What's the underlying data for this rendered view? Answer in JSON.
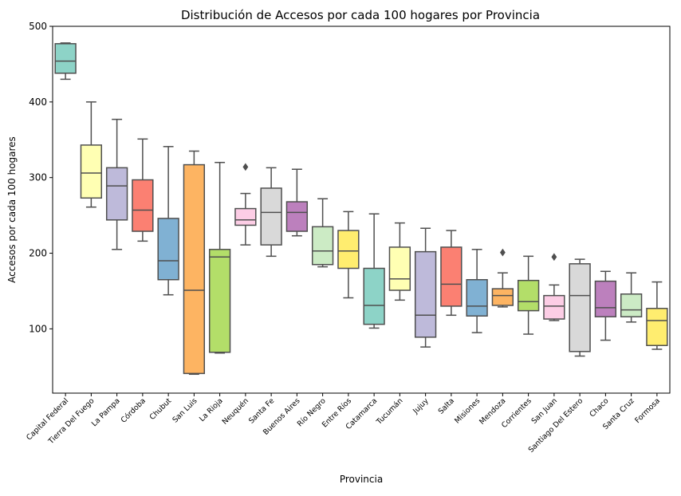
{
  "chart_data": {
    "type": "boxplot",
    "title": "Distribución de Accesos por cada 100 hogares por Provincia",
    "xlabel": "Provincia",
    "ylabel": "Accesos por cada 100 hogares",
    "ylim": [
      15,
      500
    ],
    "yticks": [
      100,
      200,
      300,
      400,
      500
    ],
    "grid": false,
    "legend": "none",
    "categories": [
      {
        "name": "Capital Federal",
        "color": "#8dd3c7",
        "whisker_low": 430,
        "q1": 438,
        "median": 454,
        "q3": 477,
        "whisker_high": 478,
        "outliers": []
      },
      {
        "name": "Tierra Del Fuego",
        "color": "#ffffb3",
        "whisker_low": 261,
        "q1": 273,
        "median": 306,
        "q3": 343,
        "whisker_high": 400,
        "outliers": []
      },
      {
        "name": "La Pampa",
        "color": "#bebada",
        "whisker_low": 205,
        "q1": 244,
        "median": 289,
        "q3": 313,
        "whisker_high": 377,
        "outliers": []
      },
      {
        "name": "Córdoba",
        "color": "#fb8072",
        "whisker_low": 216,
        "q1": 229,
        "median": 257,
        "q3": 297,
        "whisker_high": 351,
        "outliers": []
      },
      {
        "name": "Chubut",
        "color": "#80b1d3",
        "whisker_low": 145,
        "q1": 165,
        "median": 190,
        "q3": 246,
        "whisker_high": 341,
        "outliers": []
      },
      {
        "name": "San Luis",
        "color": "#fdb462",
        "whisker_low": 40,
        "q1": 41,
        "median": 151,
        "q3": 317,
        "whisker_high": 335,
        "outliers": []
      },
      {
        "name": "La Rioja",
        "color": "#b3de69",
        "whisker_low": 68,
        "q1": 69,
        "median": 195,
        "q3": 205,
        "whisker_high": 320,
        "outliers": []
      },
      {
        "name": "Neuquén",
        "color": "#fccde5",
        "whisker_low": 211,
        "q1": 237,
        "median": 244,
        "q3": 259,
        "whisker_high": 279,
        "outliers": [
          314
        ]
      },
      {
        "name": "Santa Fe",
        "color": "#d9d9d9",
        "whisker_low": 196,
        "q1": 211,
        "median": 254,
        "q3": 286,
        "whisker_high": 313,
        "outliers": []
      },
      {
        "name": "Buenos Aires",
        "color": "#bc80bd",
        "whisker_low": 223,
        "q1": 229,
        "median": 254,
        "q3": 268,
        "whisker_high": 311,
        "outliers": []
      },
      {
        "name": "Río Negro",
        "color": "#ccebc5",
        "whisker_low": 182,
        "q1": 185,
        "median": 203,
        "q3": 235,
        "whisker_high": 272,
        "outliers": []
      },
      {
        "name": "Entre Ríos",
        "color": "#ffed6f",
        "whisker_low": 141,
        "q1": 180,
        "median": 203,
        "q3": 230,
        "whisker_high": 255,
        "outliers": []
      },
      {
        "name": "Catamarca",
        "color": "#8dd3c7",
        "whisker_low": 101,
        "q1": 106,
        "median": 131,
        "q3": 180,
        "whisker_high": 252,
        "outliers": []
      },
      {
        "name": "Tucumán",
        "color": "#ffffb3",
        "whisker_low": 138,
        "q1": 151,
        "median": 166,
        "q3": 208,
        "whisker_high": 240,
        "outliers": []
      },
      {
        "name": "Jujuy",
        "color": "#bebada",
        "whisker_low": 76,
        "q1": 89,
        "median": 118,
        "q3": 202,
        "whisker_high": 233,
        "outliers": []
      },
      {
        "name": "Salta",
        "color": "#fb8072",
        "whisker_low": 118,
        "q1": 130,
        "median": 159,
        "q3": 208,
        "whisker_high": 230,
        "outliers": []
      },
      {
        "name": "Misiones",
        "color": "#80b1d3",
        "whisker_low": 95,
        "q1": 117,
        "median": 130,
        "q3": 165,
        "whisker_high": 205,
        "outliers": []
      },
      {
        "name": "Mendoza",
        "color": "#fdb462",
        "whisker_low": 129,
        "q1": 131,
        "median": 144,
        "q3": 153,
        "whisker_high": 174,
        "outliers": [
          201
        ]
      },
      {
        "name": "Corrientes",
        "color": "#b3de69",
        "whisker_low": 93,
        "q1": 124,
        "median": 136,
        "q3": 164,
        "whisker_high": 196,
        "outliers": []
      },
      {
        "name": "San Juan",
        "color": "#fccde5",
        "whisker_low": 111,
        "q1": 113,
        "median": 130,
        "q3": 144,
        "whisker_high": 158,
        "outliers": [
          195
        ]
      },
      {
        "name": "Santiago Del Estero",
        "color": "#d9d9d9",
        "whisker_low": 64,
        "q1": 70,
        "median": 144,
        "q3": 186,
        "whisker_high": 192,
        "outliers": []
      },
      {
        "name": "Chaco",
        "color": "#bc80bd",
        "whisker_low": 85,
        "q1": 116,
        "median": 128,
        "q3": 163,
        "whisker_high": 176,
        "outliers": []
      },
      {
        "name": "Santa Cruz",
        "color": "#ccebc5",
        "whisker_low": 109,
        "q1": 116,
        "median": 125,
        "q3": 146,
        "whisker_high": 174,
        "outliers": []
      },
      {
        "name": "Formosa",
        "color": "#ffed6f",
        "whisker_low": 73,
        "q1": 78,
        "median": 111,
        "q3": 127,
        "whisker_high": 162,
        "outliers": []
      }
    ]
  }
}
